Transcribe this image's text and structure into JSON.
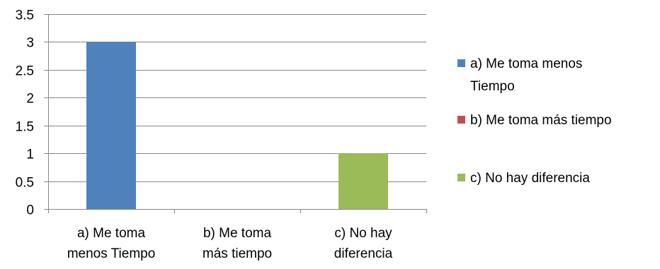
{
  "chart_data": {
    "type": "bar",
    "title": "",
    "xlabel": "",
    "ylabel": "",
    "ylim": [
      0,
      3.5
    ],
    "yticks": [
      "0",
      "0.5",
      "1",
      "1.5",
      "2",
      "2.5",
      "3",
      "3.5"
    ],
    "grid": true,
    "legend_position": "right",
    "categories": [
      {
        "lines": [
          "a) Me toma",
          "menos Tiempo"
        ]
      },
      {
        "lines": [
          "b) Me toma",
          "más tiempo"
        ]
      },
      {
        "lines": [
          "c) No hay",
          "diferencia"
        ]
      }
    ],
    "values": [
      3,
      0,
      1
    ],
    "colors": [
      "#4f81bd",
      "#c0504d",
      "#9bbb59"
    ],
    "legend": [
      {
        "lines": [
          "a) Me toma menos",
          "Tiempo"
        ],
        "color": "#4f81bd"
      },
      {
        "lines": [
          "b) Me toma más tiempo"
        ],
        "color": "#c0504d"
      },
      {
        "lines": [
          "c) No hay diferencia"
        ],
        "color": "#9bbb59"
      }
    ]
  }
}
